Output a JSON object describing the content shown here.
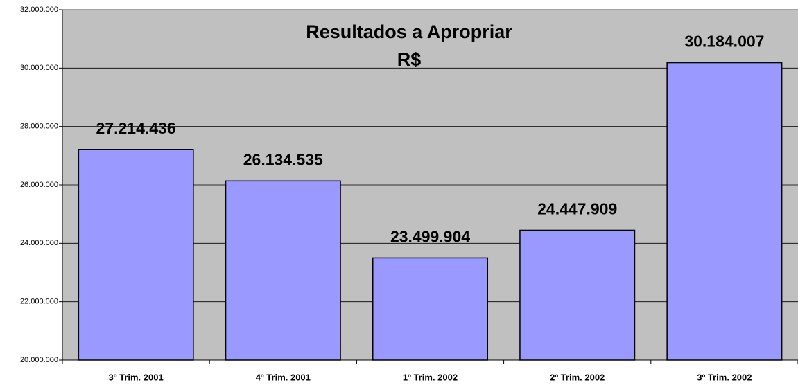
{
  "chart_data": {
    "type": "bar",
    "title": "Resultados a Apropriar",
    "subtitle": "R$",
    "categories": [
      "3º Trim. 2001",
      "4º Trim. 2001",
      "1º Trim. 2002",
      "2º Trim. 2002",
      "3º Trim. 2002"
    ],
    "values": [
      27214436,
      26134535,
      23499904,
      24447909,
      30184007
    ],
    "value_labels": [
      "27.214.436",
      "26.134.535",
      "23.499.904",
      "24.447.909",
      "30.184.007"
    ],
    "color": "#9999ff",
    "ylim": [
      20000000,
      32000000
    ],
    "yticks": [
      {
        "value": 20000000,
        "label": "20.000.000"
      },
      {
        "value": 22000000,
        "label": "22.000.000"
      },
      {
        "value": 24000000,
        "label": "24.000.000"
      },
      {
        "value": 26000000,
        "label": "26.000.000"
      },
      {
        "value": 28000000,
        "label": "28.000.000"
      },
      {
        "value": 30000000,
        "label": "30.000.000"
      },
      {
        "value": 32000000,
        "label": "32.000.000"
      }
    ],
    "grid": true
  }
}
